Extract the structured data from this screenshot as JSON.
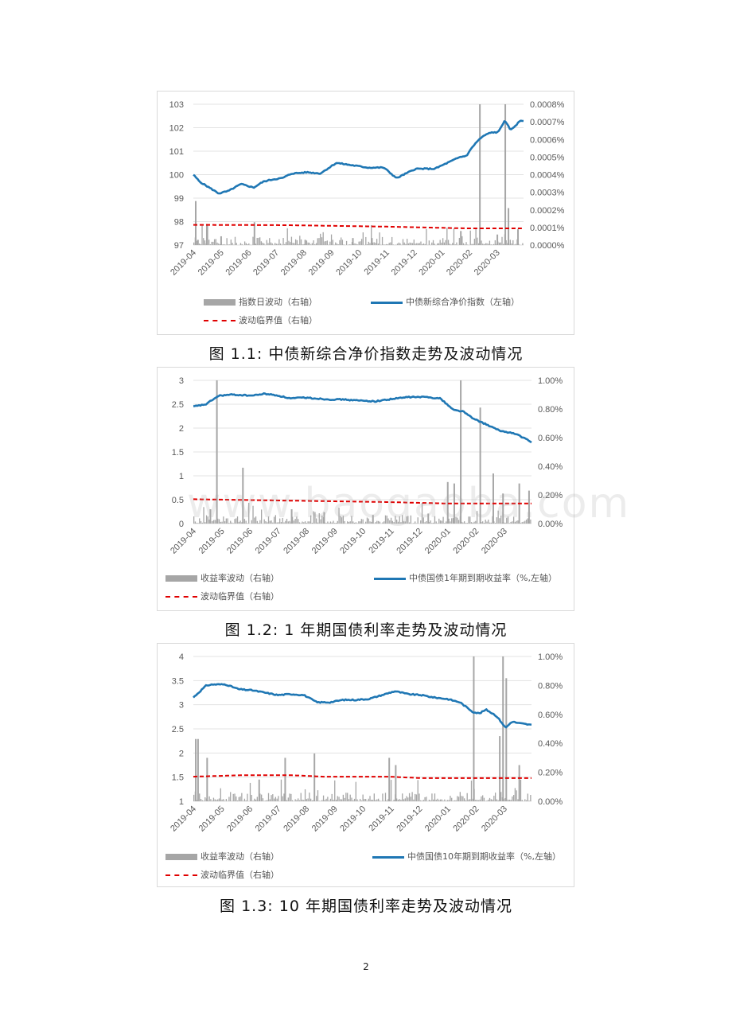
{
  "page_number": "2",
  "watermark": "www.baogaoba.com",
  "chart_data": [
    {
      "type": "line",
      "caption": "图 1.1:  中债新综合净价指数走势及波动情况",
      "x_ticks": [
        "2019-04",
        "2019-05",
        "2019-06",
        "2019-07",
        "2019-08",
        "2019-09",
        "2019-10",
        "2019-11",
        "2019-12",
        "2020-01",
        "2020-02",
        "2020-03"
      ],
      "y_left": {
        "min": 97,
        "max": 103,
        "ticks": [
          "97",
          "98",
          "99",
          "100",
          "101",
          "102",
          "103"
        ]
      },
      "y_right": {
        "min": 0,
        "max": 0.0008,
        "ticks": [
          "0.0000%",
          "0.0001%",
          "0.0002%",
          "0.0003%",
          "0.0004%",
          "0.0005%",
          "0.0006%",
          "0.0007%",
          "0.0008%"
        ]
      },
      "series": [
        {
          "name": "指数日波动（右轴）",
          "type": "bar",
          "axis": "right",
          "color": "#a6a6a6"
        },
        {
          "name": "中债新综合净价指数（左轴）",
          "type": "line",
          "axis": "left",
          "color": "#1f77b4",
          "anchors": [
            [
              0,
              100.0
            ],
            [
              0.02,
              99.7
            ],
            [
              0.05,
              99.45
            ],
            [
              0.08,
              99.2
            ],
            [
              0.11,
              99.3
            ],
            [
              0.15,
              99.6
            ],
            [
              0.19,
              99.45
            ],
            [
              0.22,
              99.7
            ],
            [
              0.25,
              99.8
            ],
            [
              0.28,
              99.85
            ],
            [
              0.31,
              100.05
            ],
            [
              0.36,
              100.1
            ],
            [
              0.4,
              100.05
            ],
            [
              0.45,
              100.5
            ],
            [
              0.5,
              100.4
            ],
            [
              0.55,
              100.3
            ],
            [
              0.6,
              100.3
            ],
            [
              0.64,
              99.85
            ],
            [
              0.67,
              100.05
            ],
            [
              0.7,
              100.25
            ],
            [
              0.73,
              100.25
            ],
            [
              0.76,
              100.25
            ],
            [
              0.8,
              100.5
            ],
            [
              0.84,
              100.75
            ],
            [
              0.86,
              100.8
            ],
            [
              0.88,
              101.2
            ],
            [
              0.9,
              101.5
            ],
            [
              0.92,
              101.7
            ],
            [
              0.94,
              101.8
            ],
            [
              0.96,
              101.8
            ],
            [
              0.97,
              102.05
            ],
            [
              0.98,
              102.3
            ],
            [
              1.0,
              101.9
            ],
            [
              1.03,
              102.3
            ]
          ]
        },
        {
          "name": "波动临界值（右轴）",
          "type": "dashed",
          "axis": "right",
          "color": "#e00000",
          "anchors": [
            [
              0,
              0.000115
            ],
            [
              0.3,
              0.000113
            ],
            [
              0.6,
              0.000105
            ],
            [
              0.86,
              9.5e-05
            ],
            [
              1.0,
              9.5e-05
            ]
          ]
        }
      ],
      "spikes": [
        [
          0.005,
          0.00025
        ],
        [
          0.012,
          3e-05
        ],
        [
          0.04,
          0.00012
        ],
        [
          0.085,
          5e-05
        ],
        [
          0.19,
          0.00013
        ],
        [
          0.35,
          3e-05
        ],
        [
          0.5,
          4e-05
        ],
        [
          0.56,
          4e-05
        ],
        [
          0.84,
          8e-05
        ],
        [
          0.9,
          0.0008
        ],
        [
          0.955,
          6e-05
        ],
        [
          0.98,
          0.0008
        ],
        [
          0.99,
          0.00021
        ],
        [
          1.02,
          9e-05
        ]
      ]
    },
    {
      "type": "line",
      "caption": "图 1.2:  1 年期国债利率走势及波动情况",
      "x_ticks": [
        "2019-04",
        "2019-05",
        "2019-06",
        "2019-07",
        "2019-08",
        "2019-09",
        "2019-10",
        "2019-11",
        "2019-12",
        "2020-01",
        "2020-02",
        "2020-03"
      ],
      "y_left": {
        "min": 0,
        "max": 3,
        "ticks": [
          "0",
          "0.5",
          "1",
          "1.5",
          "2",
          "2.5",
          "3"
        ]
      },
      "y_right": {
        "min": 0,
        "max": 0.01,
        "ticks": [
          "0.00%",
          "0.20%",
          "0.40%",
          "0.60%",
          "0.80%",
          "1.00%"
        ]
      },
      "series": [
        {
          "name": "收益率波动（右轴）",
          "type": "bar",
          "axis": "right",
          "color": "#a6a6a6"
        },
        {
          "name": "中债国债1年期到期收益率（%,左轴）",
          "type": "line",
          "axis": "left",
          "color": "#1f77b4",
          "anchors": [
            [
              0,
              2.45
            ],
            [
              0.04,
              2.5
            ],
            [
              0.06,
              2.6
            ],
            [
              0.08,
              2.68
            ],
            [
              0.12,
              2.7
            ],
            [
              0.18,
              2.68
            ],
            [
              0.22,
              2.72
            ],
            [
              0.26,
              2.68
            ],
            [
              0.3,
              2.62
            ],
            [
              0.34,
              2.64
            ],
            [
              0.38,
              2.62
            ],
            [
              0.42,
              2.6
            ],
            [
              0.46,
              2.6
            ],
            [
              0.5,
              2.58
            ],
            [
              0.56,
              2.56
            ],
            [
              0.6,
              2.6
            ],
            [
              0.66,
              2.65
            ],
            [
              0.72,
              2.65
            ],
            [
              0.76,
              2.62
            ],
            [
              0.78,
              2.5
            ],
            [
              0.8,
              2.38
            ],
            [
              0.83,
              2.35
            ],
            [
              0.86,
              2.2
            ],
            [
              0.9,
              2.08
            ],
            [
              0.94,
              1.95
            ],
            [
              0.96,
              1.92
            ],
            [
              0.98,
              1.9
            ],
            [
              1.0,
              1.85
            ],
            [
              1.02,
              1.78
            ],
            [
              1.04,
              1.7
            ]
          ]
        },
        {
          "name": "波动临界值（右轴）",
          "type": "dashed",
          "axis": "right",
          "color": "#e00000",
          "anchors": [
            [
              0,
              0.0017
            ],
            [
              0.3,
              0.0016
            ],
            [
              0.6,
              0.0015
            ],
            [
              0.78,
              0.0014
            ],
            [
              1.0,
              0.0014
            ],
            [
              1.04,
              0.0014
            ]
          ]
        }
      ],
      "spikes": [
        [
          0.05,
          0.001
        ],
        [
          0.07,
          0.01
        ],
        [
          0.15,
          0.0039
        ],
        [
          0.3,
          0.001
        ],
        [
          0.4,
          0.0008
        ],
        [
          0.55,
          0.0006
        ],
        [
          0.72,
          0.0007
        ],
        [
          0.78,
          0.0029
        ],
        [
          0.8,
          0.0028
        ],
        [
          0.82,
          0.01
        ],
        [
          0.88,
          0.0081
        ],
        [
          0.92,
          0.0035
        ],
        [
          0.95,
          0.0021
        ],
        [
          1.0,
          0.0028
        ],
        [
          1.03,
          0.0023
        ]
      ]
    },
    {
      "type": "line",
      "caption": "图 1.3:  10 年期国债利率走势及波动情况",
      "x_ticks": [
        "2019-04",
        "2019-05",
        "2019-06",
        "2019-07",
        "2019-08",
        "2019-09",
        "2019-10",
        "2019-11",
        "2019-12",
        "2020-01",
        "2020-02",
        "2020-03"
      ],
      "y_left": {
        "min": 1,
        "max": 4,
        "ticks": [
          "1",
          "1.5",
          "2",
          "2.5",
          "3",
          "3.5",
          "4"
        ]
      },
      "y_right": {
        "min": 0,
        "max": 0.01,
        "ticks": [
          "0.00%",
          "0.20%",
          "0.40%",
          "0.60%",
          "0.80%",
          "1.00%"
        ]
      },
      "series": [
        {
          "name": "收益率波动（右轴）",
          "type": "bar",
          "axis": "right",
          "color": "#a6a6a6"
        },
        {
          "name": "中债国债10年期到期收益率（%,左轴）",
          "type": "line",
          "axis": "left",
          "color": "#1f77b4",
          "anchors": [
            [
              0,
              3.15
            ],
            [
              0.04,
              3.4
            ],
            [
              0.06,
              3.42
            ],
            [
              0.1,
              3.42
            ],
            [
              0.14,
              3.32
            ],
            [
              0.18,
              3.3
            ],
            [
              0.22,
              3.25
            ],
            [
              0.26,
              3.2
            ],
            [
              0.3,
              3.22
            ],
            [
              0.34,
              3.2
            ],
            [
              0.38,
              3.05
            ],
            [
              0.42,
              3.05
            ],
            [
              0.46,
              3.1
            ],
            [
              0.5,
              3.1
            ],
            [
              0.54,
              3.12
            ],
            [
              0.58,
              3.2
            ],
            [
              0.62,
              3.28
            ],
            [
              0.66,
              3.22
            ],
            [
              0.7,
              3.2
            ],
            [
              0.74,
              3.15
            ],
            [
              0.78,
              3.12
            ],
            [
              0.82,
              3.05
            ],
            [
              0.86,
              2.85
            ],
            [
              0.88,
              2.82
            ],
            [
              0.9,
              2.9
            ],
            [
              0.93,
              2.78
            ],
            [
              0.95,
              2.62
            ],
            [
              0.96,
              2.52
            ],
            [
              0.98,
              2.65
            ],
            [
              1.0,
              2.62
            ],
            [
              1.04,
              2.58
            ]
          ]
        },
        {
          "name": "波动临界值（右轴）",
          "type": "dashed",
          "axis": "right",
          "color": "#e00000",
          "anchors": [
            [
              0,
              0.0017
            ],
            [
              0.15,
              0.0018
            ],
            [
              0.3,
              0.0018
            ],
            [
              0.4,
              0.0017
            ],
            [
              0.6,
              0.0017
            ],
            [
              0.7,
              0.0016
            ],
            [
              0.8,
              0.0016
            ],
            [
              1.04,
              0.0016
            ]
          ]
        }
      ],
      "spikes": [
        [
          0.005,
          0.0043
        ],
        [
          0.012,
          0.0043
        ],
        [
          0.04,
          0.003
        ],
        [
          0.2,
          0.0015
        ],
        [
          0.28,
          0.003
        ],
        [
          0.37,
          0.0033
        ],
        [
          0.6,
          0.003
        ],
        [
          0.62,
          0.0025
        ],
        [
          0.86,
          0.01
        ],
        [
          0.94,
          0.0045
        ],
        [
          0.95,
          0.01
        ],
        [
          0.96,
          0.0085
        ],
        [
          1.0,
          0.0025
        ]
      ]
    }
  ]
}
